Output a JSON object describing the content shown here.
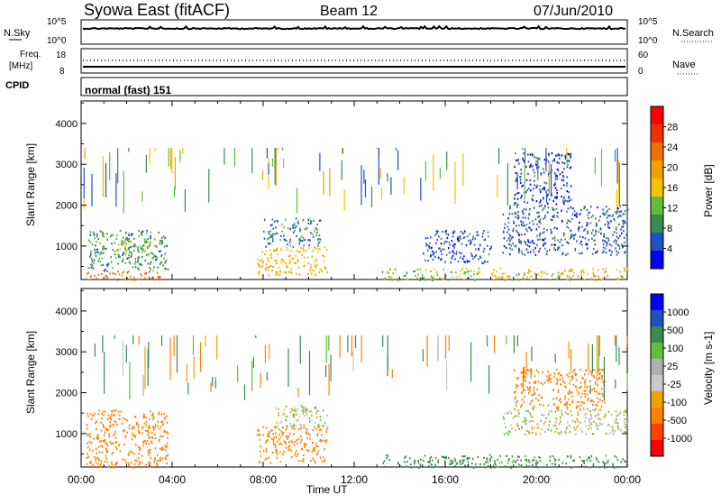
{
  "header": {
    "station": "Syowa East (fitACF)",
    "beam": "Beam 12",
    "date": "07/Jun/2010"
  },
  "noise_panel": {
    "left_label": "N.Sky",
    "right_label": "N.Search",
    "left_ticks": [
      "10^5",
      "10^0"
    ],
    "right_ticks": [
      "10^5",
      "10^0"
    ]
  },
  "freq_panel": {
    "left_label": "Freq.",
    "left_unit": "[MHz]",
    "right_label": "Nave",
    "left_ticks": [
      "18",
      "8"
    ],
    "right_ticks": [
      "60",
      "0"
    ]
  },
  "cpid_panel": {
    "label": "CPID",
    "mode": "normal (fast) 151"
  },
  "colors": {
    "power": [
      "#0000ff",
      "#2050c8",
      "#3a8a50",
      "#5fbf3a",
      "#f2c400",
      "#f0a000",
      "#f07000",
      "#f03000",
      "#ff0000"
    ],
    "velocity": [
      "#ff0000",
      "#ff4000",
      "#ff8000",
      "#f0a000",
      "#c8c8c8",
      "#b0b0b0",
      "#5fbf3a",
      "#3a8a50",
      "#2050c8",
      "#0000ff"
    ]
  },
  "chart_data": [
    {
      "type": "heatmap",
      "name": "power",
      "ylabel": "Slant Range [km]",
      "xlabel": "Time UT",
      "x_ticks": [
        "00:00",
        "04:00",
        "08:00",
        "12:00",
        "16:00",
        "20:00",
        "00:00"
      ],
      "y_ticks": [
        1000,
        2000,
        3000,
        4000
      ],
      "ylim": [
        180,
        4550
      ],
      "colorbar_label": "Power [dB]",
      "colorbar_ticks": [
        4,
        8,
        12,
        16,
        20,
        24,
        28
      ],
      "colorbar_range": [
        0,
        32
      ],
      "regions": [
        {
          "t": [
            0.2,
            3.5
          ],
          "r": [
            180,
            420
          ],
          "v": 26
        },
        {
          "t": [
            0.3,
            3.8
          ],
          "r": [
            420,
            1400
          ],
          "v": 10
        },
        {
          "t": [
            1.5,
            3.2
          ],
          "r": [
            700,
            1200
          ],
          "v": 14
        },
        {
          "t": [
            7.7,
            10.8
          ],
          "r": [
            300,
            1000
          ],
          "v": 20
        },
        {
          "t": [
            8.0,
            10.5
          ],
          "r": [
            1000,
            1700
          ],
          "v": 9
        },
        {
          "t": [
            13.2,
            17.5
          ],
          "r": [
            180,
            480
          ],
          "v": 14
        },
        {
          "t": [
            18.0,
            24.0
          ],
          "r": [
            180,
            480
          ],
          "v": 18
        },
        {
          "t": [
            18.5,
            24.0
          ],
          "r": [
            800,
            2000
          ],
          "v": 7
        },
        {
          "t": [
            15.0,
            18.0
          ],
          "r": [
            600,
            1400
          ],
          "v": 6
        },
        {
          "t": [
            19.0,
            21.5
          ],
          "r": [
            2000,
            3300
          ],
          "v": 5
        }
      ]
    },
    {
      "type": "heatmap",
      "name": "velocity",
      "ylabel": "Slant Range [km]",
      "xlabel": "Time UT",
      "x_ticks": [
        "00:00",
        "04:00",
        "08:00",
        "12:00",
        "16:00",
        "20:00",
        "00:00"
      ],
      "y_ticks": [
        1000,
        2000,
        3000,
        4000
      ],
      "ylim": [
        180,
        4550
      ],
      "colorbar_label": "Velocity [m s-1]",
      "colorbar_ticks": [
        1000,
        500,
        100,
        25,
        -25,
        -100,
        -500,
        -1000
      ],
      "regions": [
        {
          "t": [
            0.2,
            3.8
          ],
          "r": [
            180,
            1600
          ],
          "v": -300
        },
        {
          "t": [
            7.7,
            10.8
          ],
          "r": [
            300,
            1200
          ],
          "v": -150
        },
        {
          "t": [
            8.5,
            10.8
          ],
          "r": [
            1100,
            1700
          ],
          "v": 0
        },
        {
          "t": [
            13.2,
            18.0
          ],
          "r": [
            180,
            500
          ],
          "v": 200
        },
        {
          "t": [
            18.5,
            24.0
          ],
          "r": [
            1000,
            1600
          ],
          "v": 0
        },
        {
          "t": [
            18.0,
            24.0
          ],
          "r": [
            180,
            480
          ],
          "v": 150
        },
        {
          "t": [
            19.0,
            23.0
          ],
          "r": [
            1600,
            2600
          ],
          "v": -200
        }
      ]
    }
  ]
}
